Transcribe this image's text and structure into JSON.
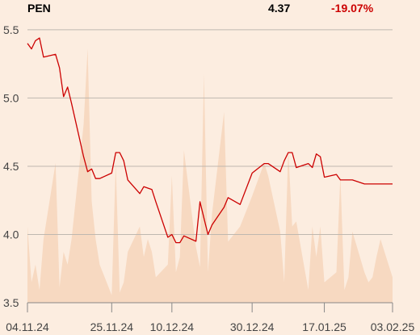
{
  "header": {
    "ticker": "PEN",
    "price": "4.37",
    "change": "-19.07%",
    "change_color": "#cc0000"
  },
  "colors": {
    "background": "#fcede0",
    "line": "#cc0000",
    "volume_area": "#f7d9c1",
    "grid": "#bfb8b0",
    "axis": "#888888",
    "tick_text": "#444444"
  },
  "chart_data": {
    "type": "line",
    "title": "",
    "xlabel": "",
    "ylabel": "",
    "ylim": [
      3.5,
      5.6
    ],
    "yticks": [
      3.5,
      4.0,
      4.5,
      5.0,
      5.5
    ],
    "ytick_labels": [
      "3.5",
      "4.0",
      "4.5",
      "5.0",
      "5.5"
    ],
    "xlim": [
      "2024-11-04",
      "2025-02-03"
    ],
    "xticks": [
      "2024-11-04",
      "2024-11-25",
      "2024-12-10",
      "2024-12-30",
      "2025-01-17",
      "2025-02-03"
    ],
    "xtick_labels": [
      "04.11.24",
      "25.11.24",
      "10.12.24",
      "30.12.24",
      "17.01.25",
      "03.02.25"
    ],
    "grid": true,
    "series": [
      {
        "kind": "line",
        "x": [
          "2024-11-04",
          "2024-11-05",
          "2024-11-06",
          "2024-11-07",
          "2024-11-08",
          "2024-11-11",
          "2024-11-12",
          "2024-11-13",
          "2024-11-14",
          "2024-11-15",
          "2024-11-18",
          "2024-11-19",
          "2024-11-20",
          "2024-11-21",
          "2024-11-22",
          "2024-11-25",
          "2024-11-26",
          "2024-11-27",
          "2024-11-28",
          "2024-11-29",
          "2024-12-02",
          "2024-12-03",
          "2024-12-04",
          "2024-12-05",
          "2024-12-06",
          "2024-12-09",
          "2024-12-10",
          "2024-12-11",
          "2024-12-12",
          "2024-12-13",
          "2024-12-16",
          "2024-12-17",
          "2024-12-18",
          "2024-12-19",
          "2024-12-20",
          "2024-12-23",
          "2024-12-24",
          "2024-12-27",
          "2024-12-30",
          "2025-01-02",
          "2025-01-03",
          "2025-01-06",
          "2025-01-07",
          "2025-01-08",
          "2025-01-09",
          "2025-01-10",
          "2025-01-13",
          "2025-01-14",
          "2025-01-15",
          "2025-01-16",
          "2025-01-17",
          "2025-01-20",
          "2025-01-21",
          "2025-01-22",
          "2025-01-23",
          "2025-01-24",
          "2025-01-27",
          "2025-01-28",
          "2025-01-29",
          "2025-01-30",
          "2025-01-31",
          "2025-02-03"
        ],
        "values": [
          5.4,
          5.36,
          5.42,
          5.44,
          5.3,
          5.32,
          5.22,
          5.01,
          5.08,
          4.96,
          4.57,
          4.46,
          4.48,
          4.41,
          4.41,
          4.45,
          4.6,
          4.6,
          4.54,
          4.4,
          4.3,
          4.35,
          4.34,
          4.33,
          4.24,
          3.98,
          4.0,
          3.94,
          3.94,
          3.99,
          3.95,
          4.24,
          4.12,
          4.0,
          4.07,
          4.2,
          4.27,
          4.22,
          4.45,
          4.52,
          4.52,
          4.46,
          4.54,
          4.6,
          4.6,
          4.49,
          4.52,
          4.49,
          4.59,
          4.57,
          4.42,
          4.44,
          4.4,
          4.4,
          4.4,
          4.4,
          4.37,
          4.37,
          4.37,
          4.37,
          4.37,
          4.37
        ]
      },
      {
        "kind": "volume_area",
        "relative_values": [
          0.3,
          0.08,
          0.15,
          0.05,
          0.25,
          0.55,
          0.06,
          0.2,
          0.15,
          0.25,
          0.7,
          1.0,
          0.4,
          0.25,
          0.15,
          0.03,
          0.55,
          0.04,
          0.08,
          0.2,
          0.3,
          0.18,
          0.25,
          0.2,
          0.1,
          0.15,
          0.5,
          0.12,
          0.18,
          0.6,
          0.22,
          0.14,
          0.9,
          0.12,
          0.35,
          0.75,
          0.24,
          0.3,
          0.42,
          0.55,
          0.5,
          0.28,
          0.08,
          0.6,
          0.3,
          0.32,
          0.05,
          0.3,
          0.18,
          0.3,
          0.08,
          0.12,
          0.5,
          0.05,
          0.1,
          0.28,
          0.12,
          0.08,
          0.1,
          0.18,
          0.25,
          0.1
        ]
      }
    ]
  }
}
